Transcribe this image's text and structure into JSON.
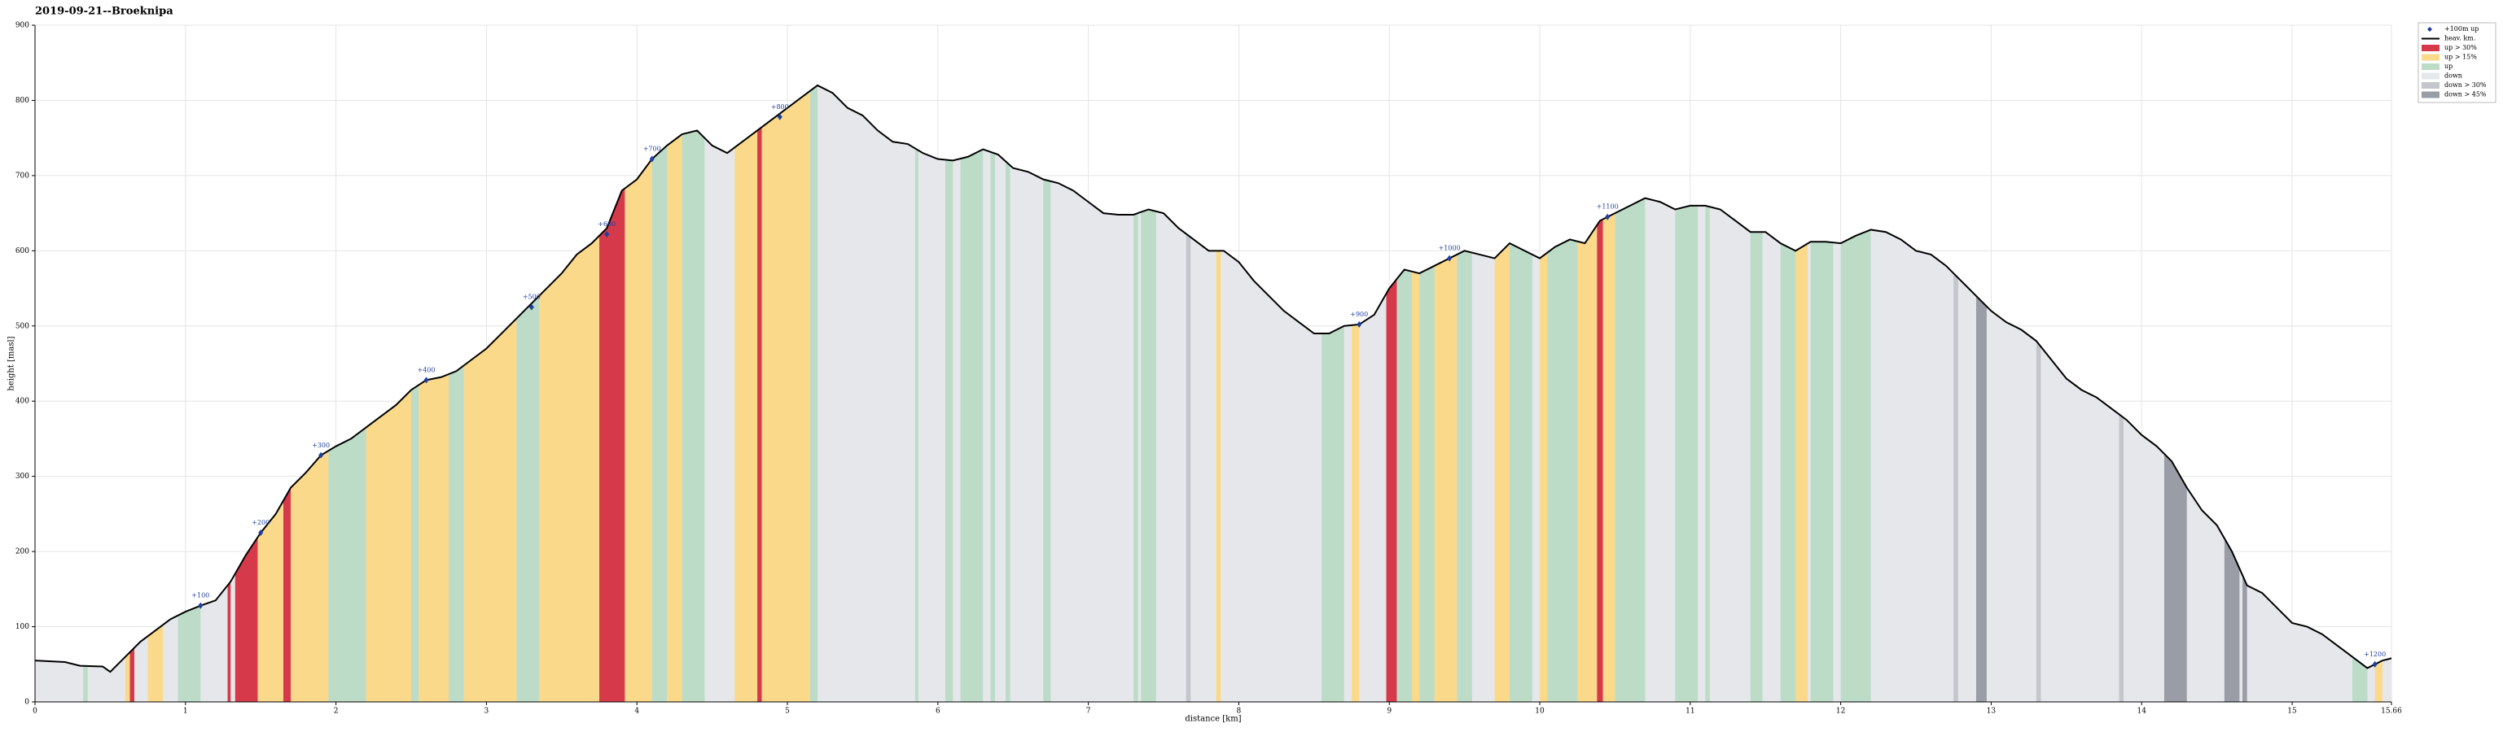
{
  "chart_data": {
    "type": "elevation-profile",
    "title": "2019-09-21--Broeknipa",
    "xlabel": "distance [km]",
    "ylabel": "height [masl]",
    "xlim": [
      0,
      15.66
    ],
    "ylim": [
      0,
      900
    ],
    "xticks": [
      0,
      1,
      2,
      3,
      4,
      5,
      6,
      7,
      8,
      9,
      10,
      11,
      12,
      13,
      14,
      15,
      15.66
    ],
    "yticks": [
      0,
      100,
      200,
      300,
      400,
      500,
      600,
      700,
      800,
      900
    ],
    "grid": true,
    "legend": "right",
    "profile": {
      "name": "heav. km.",
      "color": "#000000",
      "x": [
        0,
        0.2,
        0.3,
        0.45,
        0.5,
        0.6,
        0.7,
        0.8,
        0.9,
        1.0,
        1.1,
        1.2,
        1.3,
        1.4,
        1.5,
        1.6,
        1.7,
        1.8,
        1.9,
        2.0,
        2.1,
        2.2,
        2.3,
        2.4,
        2.5,
        2.6,
        2.7,
        2.8,
        2.9,
        3.0,
        3.1,
        3.2,
        3.3,
        3.4,
        3.5,
        3.6,
        3.7,
        3.8,
        3.9,
        4.0,
        4.1,
        4.2,
        4.3,
        4.4,
        4.5,
        4.6,
        4.7,
        4.8,
        4.9,
        5.0,
        5.1,
        5.2,
        5.3,
        5.4,
        5.5,
        5.6,
        5.7,
        5.8,
        5.9,
        6.0,
        6.1,
        6.2,
        6.3,
        6.4,
        6.5,
        6.6,
        6.7,
        6.8,
        6.9,
        7.0,
        7.1,
        7.2,
        7.3,
        7.4,
        7.5,
        7.6,
        7.7,
        7.8,
        7.9,
        8.0,
        8.1,
        8.2,
        8.3,
        8.4,
        8.5,
        8.6,
        8.7,
        8.8,
        8.9,
        9.0,
        9.1,
        9.2,
        9.3,
        9.4,
        9.5,
        9.6,
        9.7,
        9.8,
        9.9,
        10.0,
        10.1,
        10.2,
        10.3,
        10.4,
        10.5,
        10.6,
        10.7,
        10.8,
        10.9,
        11.0,
        11.1,
        11.2,
        11.3,
        11.4,
        11.5,
        11.6,
        11.7,
        11.8,
        11.9,
        12.0,
        12.1,
        12.2,
        12.3,
        12.4,
        12.5,
        12.6,
        12.7,
        12.8,
        12.9,
        13.0,
        13.1,
        13.2,
        13.3,
        13.4,
        13.5,
        13.6,
        13.7,
        13.8,
        13.9,
        14.0,
        14.1,
        14.2,
        14.3,
        14.4,
        14.5,
        14.6,
        14.7,
        14.8,
        14.9,
        15.0,
        15.1,
        15.2,
        15.3,
        15.4,
        15.5,
        15.6,
        15.66
      ],
      "values": [
        55,
        53,
        48,
        47,
        40,
        60,
        80,
        95,
        110,
        120,
        128,
        135,
        160,
        195,
        225,
        250,
        285,
        305,
        328,
        340,
        350,
        365,
        380,
        395,
        415,
        428,
        432,
        440,
        455,
        470,
        490,
        510,
        530,
        550,
        570,
        595,
        610,
        630,
        680,
        695,
        722,
        740,
        755,
        760,
        740,
        730,
        745,
        760,
        775,
        790,
        805,
        820,
        810,
        790,
        780,
        760,
        745,
        742,
        730,
        722,
        720,
        725,
        735,
        728,
        710,
        705,
        695,
        690,
        680,
        665,
        650,
        648,
        648,
        655,
        650,
        630,
        615,
        600,
        600,
        585,
        560,
        540,
        520,
        505,
        490,
        490,
        500,
        502,
        515,
        550,
        575,
        570,
        580,
        590,
        600,
        595,
        590,
        610,
        600,
        590,
        605,
        615,
        610,
        640,
        650,
        660,
        670,
        665,
        655,
        660,
        660,
        655,
        640,
        625,
        625,
        610,
        600,
        612,
        612,
        610,
        620,
        628,
        625,
        615,
        600,
        595,
        580,
        560,
        540,
        520,
        505,
        495,
        480,
        455,
        430,
        415,
        405,
        390,
        375,
        355,
        340,
        320,
        285,
        255,
        235,
        200,
        155,
        145,
        125,
        105,
        100,
        90,
        75,
        60,
        45,
        55,
        58
      ]
    },
    "markers": {
      "name": "+100m up",
      "color": "#1f3fa0",
      "x": [
        1.1,
        1.5,
        1.9,
        2.6,
        3.3,
        3.8,
        4.1,
        4.95,
        8.8,
        9.4,
        10.45,
        15.55
      ],
      "values": [
        128,
        225,
        328,
        428,
        525,
        622,
        722,
        778,
        502,
        590,
        645,
        50
      ],
      "climbs": [
        100,
        200,
        300,
        400,
        500,
        600,
        700,
        800,
        900,
        1000,
        1100,
        1200
      ],
      "labels": [
        "+100",
        "+200",
        "+300",
        "+400",
        "+500",
        "+600",
        "+700",
        "+800",
        "+900",
        "+1000",
        "+1100",
        "+1200"
      ]
    },
    "series": [
      {
        "name": "up > 30%",
        "color": "#d63a4a",
        "segments": [
          [
            0.63,
            0.66
          ],
          [
            1.28,
            1.3
          ],
          [
            1.33,
            1.48
          ],
          [
            1.65,
            1.7
          ],
          [
            3.75,
            3.92
          ],
          [
            4.8,
            4.83
          ],
          [
            8.98,
            9.05
          ],
          [
            10.38,
            10.42
          ]
        ]
      },
      {
        "name": "up > 15%",
        "color": "#fbd98a",
        "segments": [
          [
            0.6,
            0.63
          ],
          [
            0.75,
            0.85
          ],
          [
            1.48,
            1.65
          ],
          [
            1.7,
            1.95
          ],
          [
            2.2,
            2.5
          ],
          [
            2.55,
            2.75
          ],
          [
            2.85,
            3.2
          ],
          [
            3.35,
            3.75
          ],
          [
            3.92,
            4.1
          ],
          [
            4.2,
            4.3
          ],
          [
            4.65,
            4.8
          ],
          [
            4.83,
            5.15
          ],
          [
            7.85,
            7.88
          ],
          [
            8.75,
            8.8
          ],
          [
            9.15,
            9.2
          ],
          [
            9.3,
            9.45
          ],
          [
            9.7,
            9.8
          ],
          [
            10.0,
            10.05
          ],
          [
            10.25,
            10.38
          ],
          [
            10.42,
            10.5
          ],
          [
            11.7,
            11.78
          ],
          [
            15.55,
            15.6
          ]
        ]
      },
      {
        "name": "up",
        "color": "#bcdcc8",
        "segments": [
          [
            0.32,
            0.35
          ],
          [
            0.95,
            1.1
          ],
          [
            1.95,
            2.2
          ],
          [
            2.5,
            2.55
          ],
          [
            2.75,
            2.85
          ],
          [
            3.2,
            3.35
          ],
          [
            4.1,
            4.2
          ],
          [
            4.3,
            4.45
          ],
          [
            5.15,
            5.2
          ],
          [
            5.85,
            5.87
          ],
          [
            6.05,
            6.1
          ],
          [
            6.15,
            6.3
          ],
          [
            6.35,
            6.38
          ],
          [
            6.45,
            6.48
          ],
          [
            6.7,
            6.75
          ],
          [
            7.3,
            7.33
          ],
          [
            7.35,
            7.45
          ],
          [
            8.55,
            8.7
          ],
          [
            9.05,
            9.15
          ],
          [
            9.2,
            9.3
          ],
          [
            9.45,
            9.55
          ],
          [
            9.8,
            9.95
          ],
          [
            10.05,
            10.25
          ],
          [
            10.5,
            10.7
          ],
          [
            10.9,
            11.05
          ],
          [
            11.1,
            11.13
          ],
          [
            11.4,
            11.48
          ],
          [
            11.6,
            11.7
          ],
          [
            11.8,
            11.95
          ],
          [
            12.0,
            12.2
          ],
          [
            15.4,
            15.5
          ]
        ]
      },
      {
        "name": "down",
        "color": "#e6e7ea",
        "segments": [
          [
            0,
            15.66
          ]
        ]
      },
      {
        "name": "down > 30%",
        "color": "#c4c6cc",
        "segments": [
          [
            7.65,
            7.68
          ],
          [
            12.75,
            12.78
          ],
          [
            13.3,
            13.33
          ],
          [
            13.85,
            13.88
          ]
        ]
      },
      {
        "name": "down > 45%",
        "color": "#9a9ca6",
        "segments": [
          [
            12.9,
            12.97
          ],
          [
            14.15,
            14.3
          ],
          [
            14.55,
            14.65
          ],
          [
            14.67,
            14.7
          ]
        ]
      }
    ]
  }
}
